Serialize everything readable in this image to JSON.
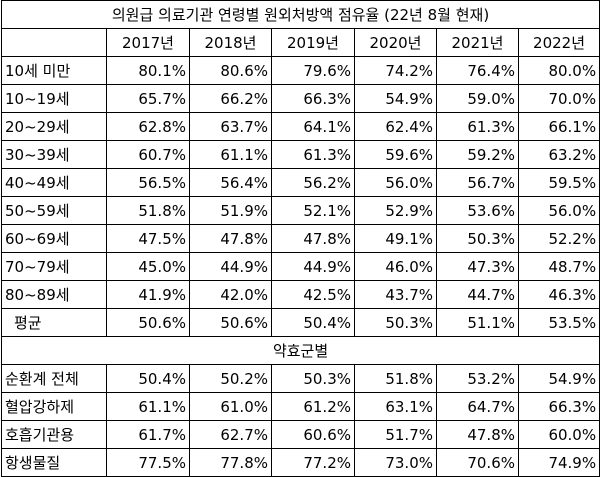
{
  "title": "의원급 의료기관 연령별 원외처방액 점유율 (22년 8월 현재)",
  "years": [
    "2017년",
    "2018년",
    "2019년",
    "2020년",
    "2021년",
    "2022년"
  ],
  "age_rows": [
    {
      "label": "10세 미만",
      "values": [
        "80.1%",
        "80.6%",
        "79.6%",
        "74.2%",
        "76.4%",
        "80.0%"
      ]
    },
    {
      "label": "10~19세",
      "values": [
        "65.7%",
        "66.2%",
        "66.3%",
        "54.9%",
        "59.0%",
        "70.0%"
      ]
    },
    {
      "label": "20~29세",
      "values": [
        "62.8%",
        "63.7%",
        "64.1%",
        "62.4%",
        "61.3%",
        "66.1%"
      ]
    },
    {
      "label": "30~39세",
      "values": [
        "60.7%",
        "61.1%",
        "61.3%",
        "59.6%",
        "59.2%",
        "63.2%"
      ]
    },
    {
      "label": "40~49세",
      "values": [
        "56.5%",
        "56.4%",
        "56.2%",
        "56.0%",
        "56.7%",
        "59.5%"
      ]
    },
    {
      "label": "50~59세",
      "values": [
        "51.8%",
        "51.9%",
        "52.1%",
        "52.9%",
        "53.6%",
        "56.0%"
      ]
    },
    {
      "label": "60~69세",
      "values": [
        "47.5%",
        "47.8%",
        "47.8%",
        "49.1%",
        "50.3%",
        "52.2%"
      ]
    },
    {
      "label": "70~79세",
      "values": [
        "45.0%",
        "44.9%",
        "44.9%",
        "46.0%",
        "47.3%",
        "48.7%"
      ]
    },
    {
      "label": "80~89세",
      "values": [
        "41.9%",
        "42.0%",
        "42.5%",
        "43.7%",
        "44.7%",
        "46.3%"
      ]
    },
    {
      "label": "평균",
      "values": [
        "50.6%",
        "50.6%",
        "50.4%",
        "50.3%",
        "51.1%",
        "53.5%"
      ]
    }
  ],
  "section_label": "약효군별",
  "drug_rows": [
    {
      "label": "순환계 전체",
      "values": [
        "50.4%",
        "50.2%",
        "50.3%",
        "51.8%",
        "53.2%",
        "54.9%"
      ]
    },
    {
      "label": "혈압강하제",
      "values": [
        "61.1%",
        "61.0%",
        "61.2%",
        "63.1%",
        "64.7%",
        "66.3%"
      ]
    },
    {
      "label": "호흡기관용",
      "values": [
        "61.7%",
        "62.7%",
        "60.6%",
        "51.7%",
        "47.8%",
        "60.0%"
      ]
    },
    {
      "label": "항생물질",
      "values": [
        "77.5%",
        "77.8%",
        "77.2%",
        "73.0%",
        "70.6%",
        "74.9%"
      ]
    }
  ]
}
